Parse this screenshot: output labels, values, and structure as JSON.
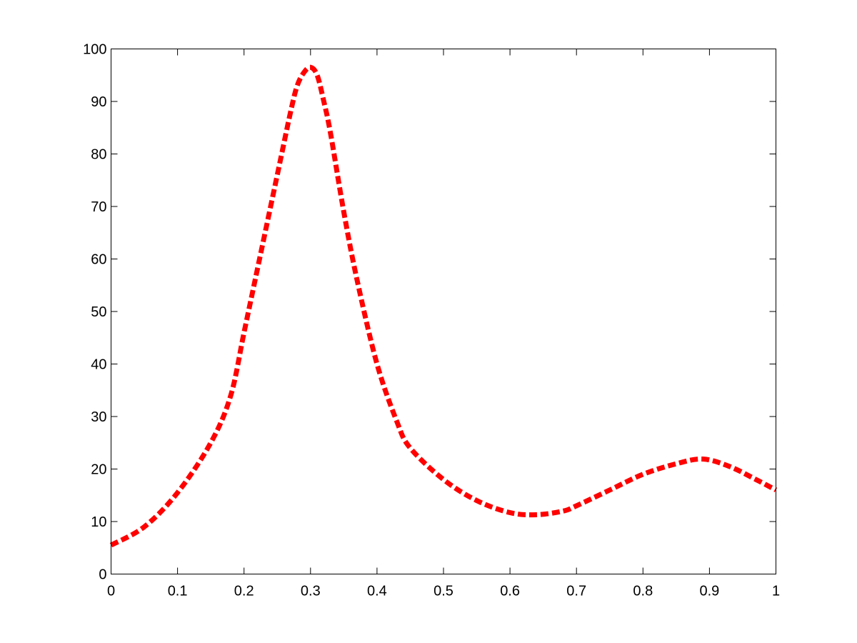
{
  "chart_data": {
    "type": "line",
    "title": "",
    "xlabel": "",
    "ylabel": "",
    "xlim": [
      0,
      1
    ],
    "ylim": [
      0,
      100
    ],
    "xticks": [
      0,
      0.1,
      0.2,
      0.3,
      0.4,
      0.5,
      0.6,
      0.7,
      0.8,
      0.9,
      1
    ],
    "xtick_labels": [
      "0",
      "0.1",
      "0.2",
      "0.3",
      "0.4",
      "0.5",
      "0.6",
      "0.7",
      "0.8",
      "0.9",
      "1"
    ],
    "yticks": [
      0,
      10,
      20,
      30,
      40,
      50,
      60,
      70,
      80,
      90,
      100
    ],
    "ytick_labels": [
      "0",
      "10",
      "20",
      "30",
      "40",
      "50",
      "60",
      "70",
      "80",
      "90",
      "100"
    ],
    "grid": false,
    "legend": "none",
    "series": [
      {
        "color": "#ff0000",
        "line_style": "dashed",
        "x": [
          0,
          0.05,
          0.1,
          0.15,
          0.18,
          0.2,
          0.22,
          0.25,
          0.27,
          0.28,
          0.29,
          0.3,
          0.31,
          0.32,
          0.33,
          0.35,
          0.37,
          0.4,
          0.43,
          0.45,
          0.5,
          0.55,
          0.6,
          0.64,
          0.68,
          0.7,
          0.75,
          0.8,
          0.85,
          0.89,
          0.93,
          0.97,
          1
        ],
        "y": [
          5.5,
          9,
          15.5,
          25,
          34,
          46,
          58,
          76,
          88,
          93,
          95.5,
          96.5,
          95,
          90,
          84,
          69,
          56,
          40,
          29,
          24,
          18,
          14,
          11.7,
          11.3,
          12,
          13,
          16,
          19,
          21,
          21.9,
          20.5,
          18,
          16
        ]
      }
    ]
  }
}
